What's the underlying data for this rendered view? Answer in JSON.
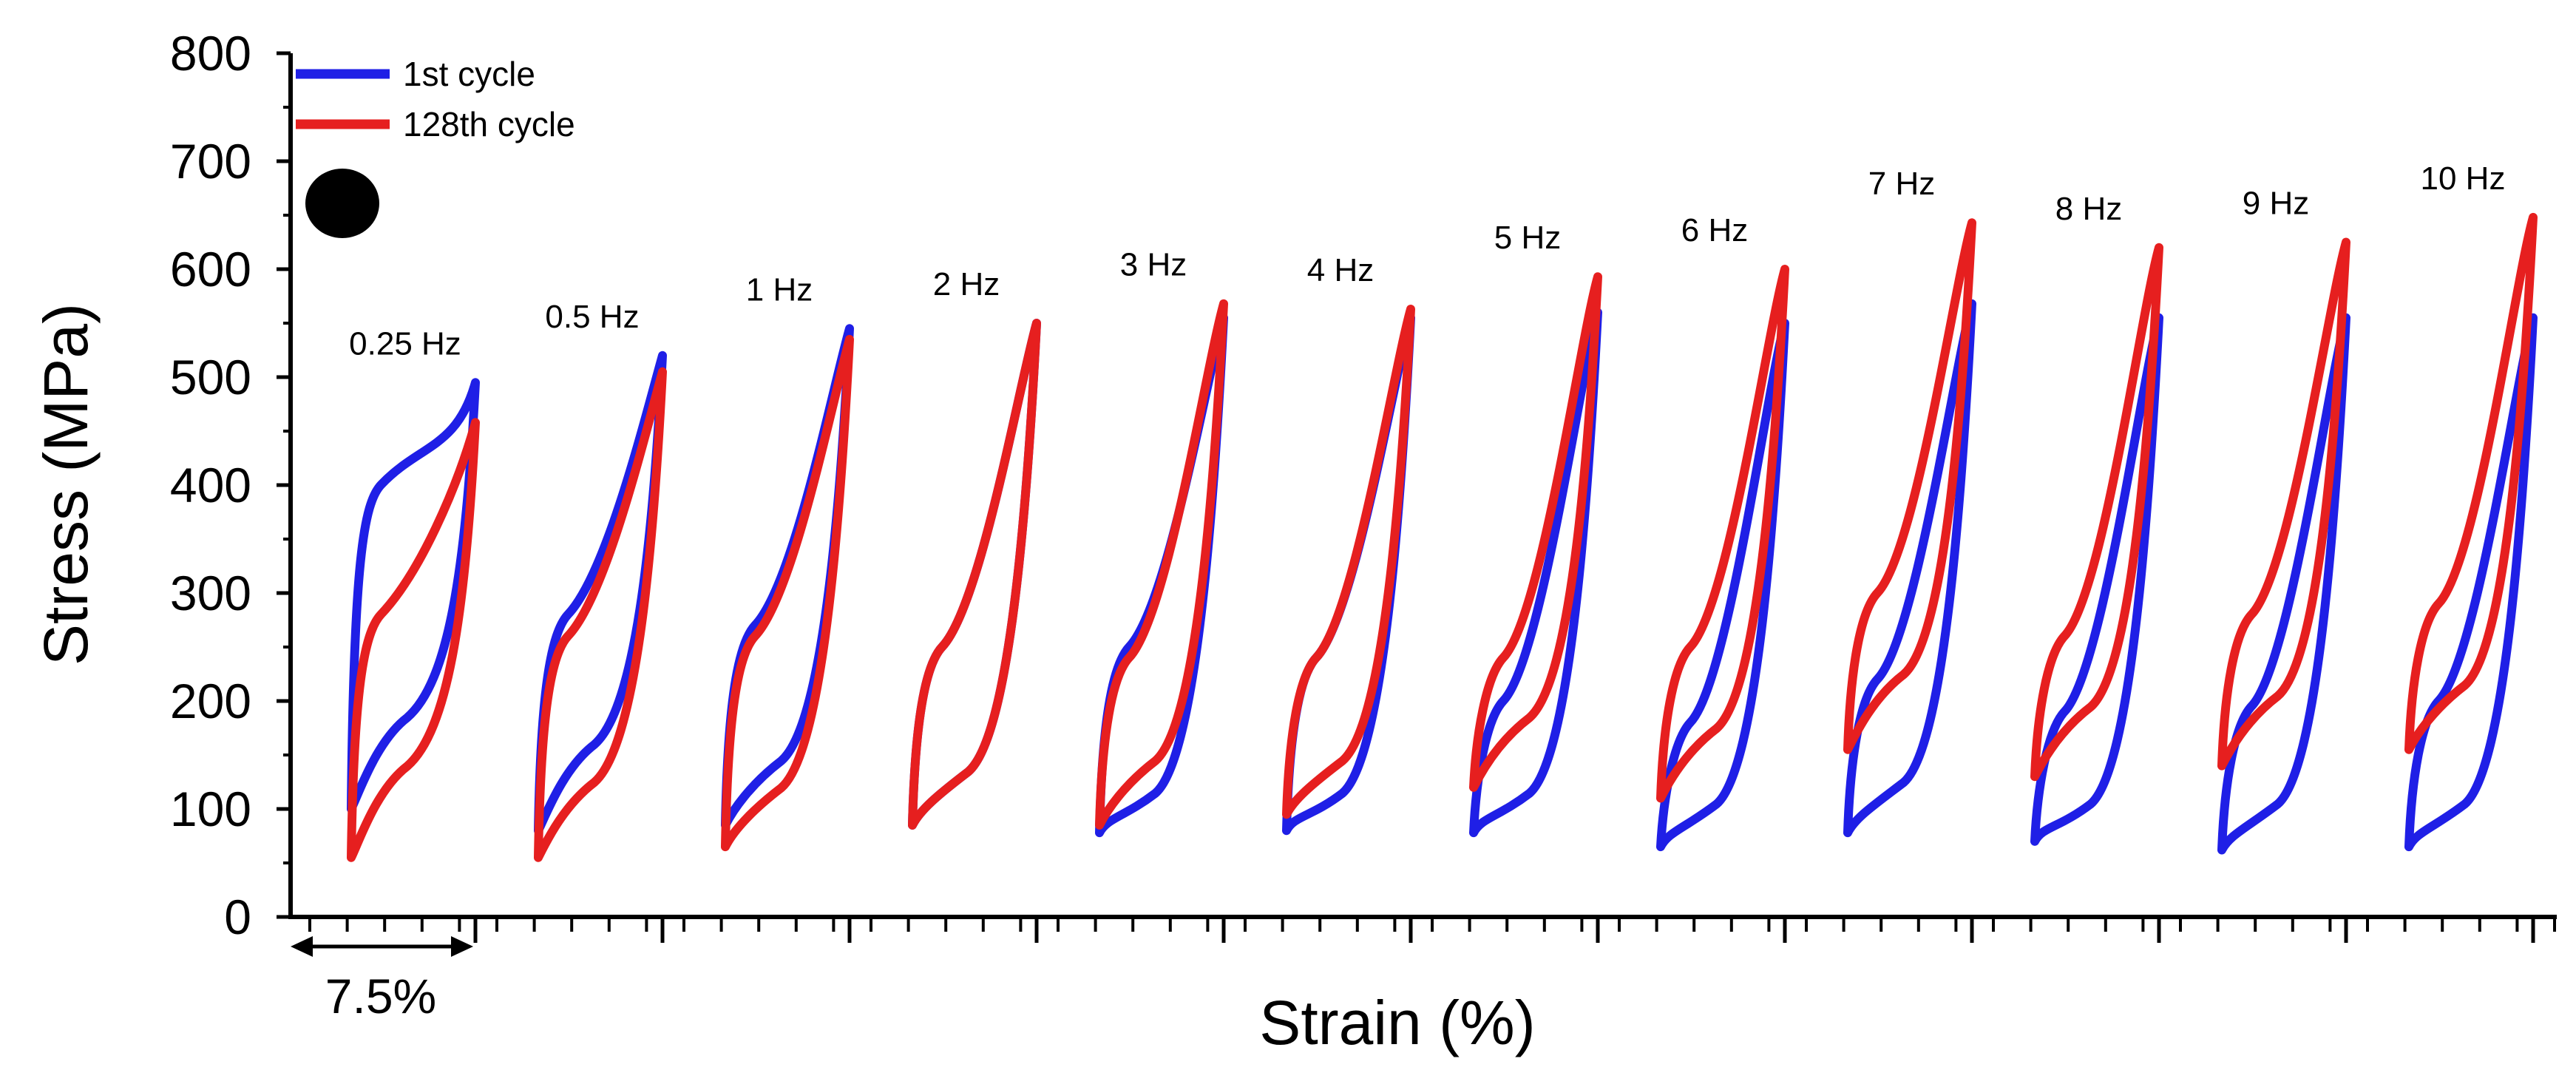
{
  "chart_data": {
    "type": "line",
    "title": "",
    "xlabel": "Strain (%)",
    "ylabel": "Stress (MPa)",
    "ylim": [
      0,
      800
    ],
    "y_ticks": [
      0,
      100,
      200,
      300,
      400,
      500,
      600,
      700,
      800
    ],
    "x_scale_bar": "7.5%",
    "grid": false,
    "legend_position": "top-left",
    "marker_symbol": "black filled circle",
    "series": [
      {
        "name": "1st cycle",
        "color": "#1f1fe6"
      },
      {
        "name": "128th cycle",
        "color": "#e61f1f"
      }
    ],
    "loops": [
      {
        "label": "0.25 Hz",
        "first": {
          "min": 100,
          "max": 495,
          "yield": 390,
          "up_mid": 190
        },
        "last": {
          "min": 55,
          "max": 458,
          "yield": 270,
          "up_mid": 145
        }
      },
      {
        "label": "0.5 Hz",
        "first": {
          "min": 80,
          "max": 520,
          "yield": 270,
          "up_mid": 165
        },
        "last": {
          "min": 55,
          "max": 505,
          "yield": 250,
          "up_mid": 130
        }
      },
      {
        "label": "1 Hz",
        "first": {
          "min": 85,
          "max": 545,
          "yield": 260,
          "up_mid": 150
        },
        "last": {
          "min": 65,
          "max": 535,
          "yield": 250,
          "up_mid": 125
        }
      },
      {
        "label": "2 Hz",
        "first": {
          "min": 85,
          "max": 550,
          "yield": 240,
          "up_mid": 140
        },
        "last": {
          "min": 85,
          "max": 550,
          "yield": 240,
          "up_mid": 140
        }
      },
      {
        "label": "3 Hz",
        "first": {
          "min": 78,
          "max": 555,
          "yield": 240,
          "up_mid": 120
        },
        "last": {
          "min": 85,
          "max": 568,
          "yield": 230,
          "up_mid": 150
        }
      },
      {
        "label": "4 Hz",
        "first": {
          "min": 80,
          "max": 555,
          "yield": 230,
          "up_mid": 120
        },
        "last": {
          "min": 95,
          "max": 563,
          "yield": 230,
          "up_mid": 150
        }
      },
      {
        "label": "5 Hz",
        "first": {
          "min": 78,
          "max": 560,
          "yield": 190,
          "up_mid": 120
        },
        "last": {
          "min": 120,
          "max": 593,
          "yield": 230,
          "up_mid": 190
        }
      },
      {
        "label": "6 Hz",
        "first": {
          "min": 65,
          "max": 550,
          "yield": 170,
          "up_mid": 110
        },
        "last": {
          "min": 110,
          "max": 600,
          "yield": 240,
          "up_mid": 180
        }
      },
      {
        "label": "7 Hz",
        "first": {
          "min": 78,
          "max": 568,
          "yield": 210,
          "up_mid": 130
        },
        "last": {
          "min": 155,
          "max": 643,
          "yield": 290,
          "up_mid": 230
        }
      },
      {
        "label": "8 Hz",
        "first": {
          "min": 70,
          "max": 555,
          "yield": 180,
          "up_mid": 110
        },
        "last": {
          "min": 130,
          "max": 620,
          "yield": 250,
          "up_mid": 200
        }
      },
      {
        "label": "9 Hz",
        "first": {
          "min": 62,
          "max": 555,
          "yield": 185,
          "up_mid": 110
        },
        "last": {
          "min": 140,
          "max": 625,
          "yield": 270,
          "up_mid": 210
        }
      },
      {
        "label": "10 Hz",
        "first": {
          "min": 65,
          "max": 555,
          "yield": 190,
          "up_mid": 110
        },
        "last": {
          "min": 155,
          "max": 648,
          "yield": 280,
          "up_mid": 220
        }
      }
    ]
  }
}
